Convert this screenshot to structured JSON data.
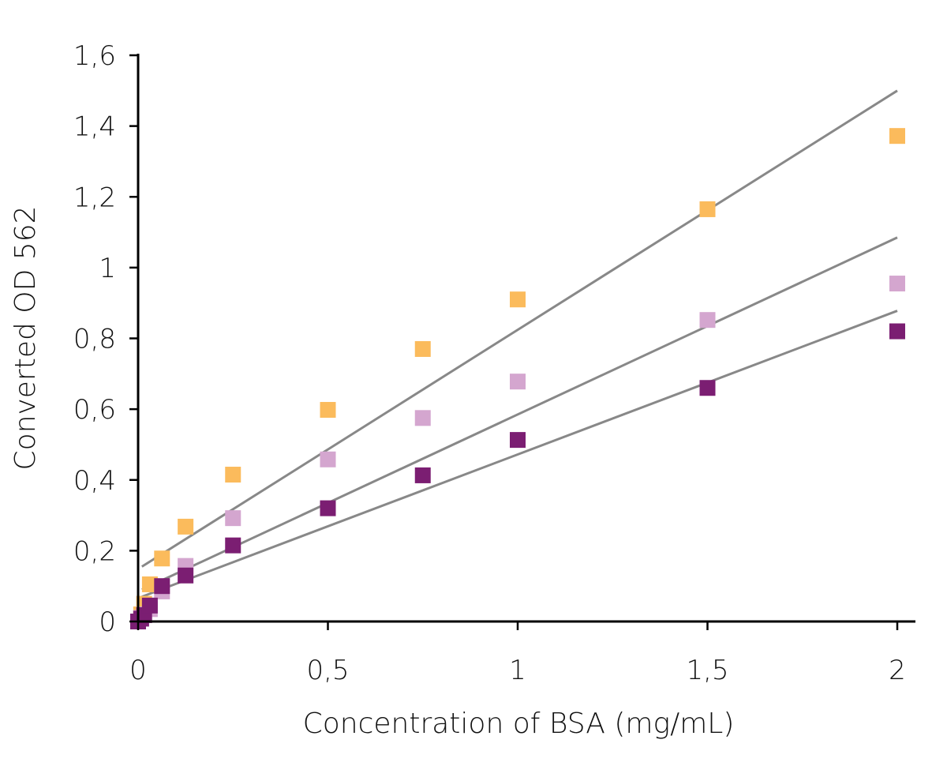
{
  "chart_data": {
    "type": "scatter",
    "title": "",
    "xlabel": "Concentration of BSA (mg/mL)",
    "ylabel": "Converted OD 562",
    "xlim": [
      0,
      2
    ],
    "ylim": [
      0,
      1.6
    ],
    "x_ticks": [
      {
        "value": 0,
        "label": "0"
      },
      {
        "value": 0.5,
        "label": "0,5"
      },
      {
        "value": 1,
        "label": "1"
      },
      {
        "value": 1.5,
        "label": "1,5"
      },
      {
        "value": 2,
        "label": "2"
      }
    ],
    "y_ticks": [
      {
        "value": 0,
        "label": "0"
      },
      {
        "value": 0.2,
        "label": "0,2"
      },
      {
        "value": 0.4,
        "label": "0,4"
      },
      {
        "value": 0.6,
        "label": "0,6"
      },
      {
        "value": 0.8,
        "label": "0,8"
      },
      {
        "value": 1.0,
        "label": "1"
      },
      {
        "value": 1.2,
        "label": "1,2"
      },
      {
        "value": 1.4,
        "label": "1,4"
      },
      {
        "value": 1.6,
        "label": "1,6"
      }
    ],
    "grid": false,
    "legend": "none",
    "trendline_color": "#888888",
    "series": [
      {
        "color": "#FBBB5C",
        "x": [
          0,
          0.008,
          0.016,
          0.031,
          0.063,
          0.125,
          0.25,
          0.5,
          0.75,
          1,
          1.5,
          2
        ],
        "y": [
          0.0,
          0.02,
          0.05,
          0.105,
          0.178,
          0.268,
          0.415,
          0.598,
          0.77,
          0.91,
          1.165,
          1.372
        ],
        "fit": {
          "x": [
            0.01,
            2
          ],
          "y": [
            0.155,
            1.5
          ]
        }
      },
      {
        "color": "#D4A6CF",
        "x": [
          0,
          0.008,
          0.016,
          0.031,
          0.063,
          0.125,
          0.25,
          0.5,
          0.75,
          1,
          1.5,
          2
        ],
        "y": [
          0.0,
          0.01,
          0.02,
          0.035,
          0.085,
          0.157,
          0.292,
          0.458,
          0.575,
          0.678,
          0.852,
          0.955
        ],
        "fit": {
          "x": [
            0.01,
            2
          ],
          "y": [
            0.09,
            1.085
          ]
        }
      },
      {
        "color": "#7B1E72",
        "x": [
          0,
          0.008,
          0.016,
          0.031,
          0.063,
          0.125,
          0.25,
          0.5,
          0.75,
          1,
          1.5,
          2
        ],
        "y": [
          0.0,
          0.008,
          0.018,
          0.045,
          0.1,
          0.13,
          0.215,
          0.32,
          0.413,
          0.513,
          0.66,
          0.82
        ],
        "fit": {
          "x": [
            0.01,
            2
          ],
          "y": [
            0.07,
            0.878
          ]
        }
      }
    ]
  }
}
